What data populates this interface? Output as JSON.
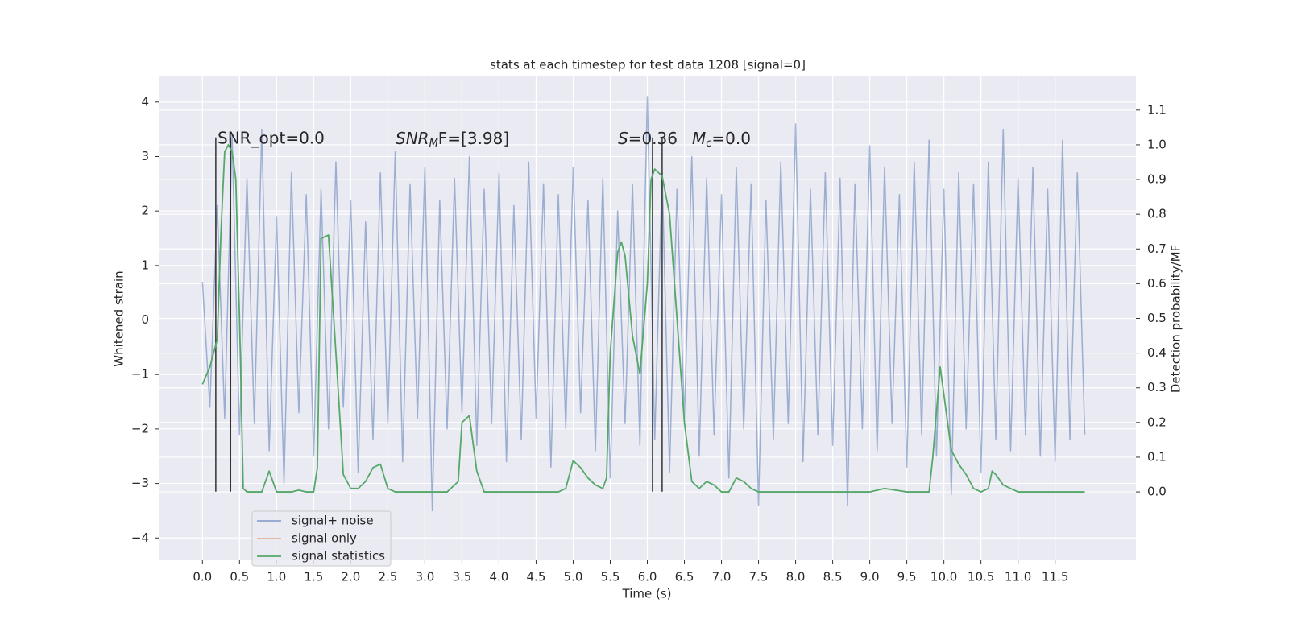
{
  "chart_data": {
    "type": "line",
    "title": "stats at each timestep for test data 1208 [signal=0]",
    "xlabel": "Time (s)",
    "ylabel": "Whitened strain",
    "y2label": "Detection probability/MF",
    "xlim": [
      -0.59,
      12.59
    ],
    "ylim": [
      -4.41,
      4.47
    ],
    "y2lim": [
      -0.197,
      1.197
    ],
    "grid": true,
    "legend": "lower left",
    "xticks": [
      {
        "value": 0,
        "label": "0.0"
      },
      0.5,
      {
        "value": 1,
        "label": "1.0"
      },
      1.5,
      {
        "value": 2,
        "label": "2.0"
      },
      2.5,
      {
        "value": 3,
        "label": "3.0"
      },
      3.5,
      {
        "value": 4,
        "label": "4.0"
      },
      4.5,
      {
        "value": 5,
        "label": "5.0"
      },
      5.5,
      {
        "value": 6,
        "label": "6.0"
      },
      6.5,
      {
        "value": 7,
        "label": "7.0"
      },
      7.5,
      {
        "value": 8,
        "label": "8.0"
      },
      8.5,
      {
        "value": 9,
        "label": "9.0"
      },
      9.5,
      {
        "value": 10,
        "label": "10.0"
      },
      10.5,
      {
        "value": 11,
        "label": "11.0"
      },
      11.5
    ],
    "yticks": [
      {
        "value": -4,
        "label": "−4"
      },
      {
        "value": -3,
        "label": "−3"
      },
      {
        "value": -2,
        "label": "−2"
      },
      {
        "value": -1,
        "label": "−1"
      },
      0,
      1,
      2,
      3,
      4
    ],
    "y2ticks": [
      {
        "value": 0,
        "label": "0.0"
      },
      0.1,
      0.2,
      0.3,
      0.4,
      0.5,
      0.6,
      0.7,
      0.8,
      0.9,
      {
        "value": 1,
        "label": "1.0"
      },
      1.1
    ],
    "series": [
      {
        "name": "signal+ noise",
        "color": "#4c72b0",
        "x": [
          0,
          0.1,
          0.2,
          0.3,
          0.4,
          0.5,
          0.6,
          0.7,
          0.8,
          0.9,
          1,
          1.1,
          1.2,
          1.3,
          1.4,
          1.5,
          1.6,
          1.7,
          1.8,
          1.9,
          2,
          2.1,
          2.2,
          2.3,
          2.4,
          2.5,
          2.6,
          2.7,
          2.8,
          2.9,
          3,
          3.1,
          3.2,
          3.3,
          3.4,
          3.5,
          3.6,
          3.7,
          3.8,
          3.9,
          4,
          4.1,
          4.2,
          4.3,
          4.4,
          4.5,
          4.6,
          4.7,
          4.8,
          4.9,
          5,
          5.1,
          5.2,
          5.3,
          5.4,
          5.5,
          5.6,
          5.7,
          5.8,
          5.9,
          6,
          6.1,
          6.2,
          6.3,
          6.4,
          6.5,
          6.6,
          6.7,
          6.8,
          6.9,
          7,
          7.1,
          7.2,
          7.3,
          7.4,
          7.5,
          7.6,
          7.7,
          7.8,
          7.9,
          8,
          8.1,
          8.2,
          8.3,
          8.4,
          8.5,
          8.6,
          8.7,
          8.8,
          8.9,
          9,
          9.1,
          9.2,
          9.3,
          9.4,
          9.5,
          9.6,
          9.7,
          9.8,
          9.9,
          10,
          10.1,
          10.2,
          10.3,
          10.4,
          10.5,
          10.6,
          10.7,
          10.8,
          10.9,
          11,
          11.1,
          11.2,
          11.3,
          11.4,
          11.5,
          11.6,
          11.7,
          11.8,
          11.9
        ],
        "values": [
          0.7,
          -1.6,
          2.1,
          -1.8,
          3.4,
          -2.1,
          2.6,
          -1.9,
          3.5,
          -2.4,
          1.9,
          -3.0,
          2.7,
          -1.7,
          2.3,
          -2.5,
          2.4,
          -2.0,
          2.9,
          -1.6,
          2.2,
          -2.8,
          1.8,
          -2.2,
          2.7,
          -1.9,
          3.1,
          -2.6,
          2.5,
          -1.8,
          2.8,
          -3.5,
          2.2,
          -2.0,
          2.6,
          -1.7,
          3.0,
          -2.3,
          2.4,
          -1.9,
          2.7,
          -2.6,
          2.1,
          -2.2,
          2.9,
          -1.8,
          2.5,
          -2.7,
          2.3,
          -2.0,
          2.8,
          -1.7,
          2.2,
          -2.4,
          2.6,
          -2.9,
          2.0,
          -1.9,
          2.5,
          -2.3,
          4.1,
          -2.2,
          2.7,
          -2.8,
          2.4,
          -1.8,
          3.0,
          -2.5,
          2.6,
          -2.1,
          2.3,
          -2.9,
          2.8,
          -2.0,
          2.5,
          -3.4,
          2.2,
          -2.2,
          2.9,
          -1.9,
          3.6,
          -2.6,
          2.4,
          -2.1,
          2.7,
          -2.3,
          2.6,
          -3.4,
          2.5,
          -2.0,
          3.2,
          -2.4,
          2.8,
          -1.9,
          2.3,
          -2.7,
          2.9,
          -2.1,
          3.3,
          -2.5,
          2.4,
          -3.2,
          2.7,
          -2.0,
          2.5,
          -2.8,
          2.9,
          -2.2,
          3.5,
          -2.4,
          2.6,
          -2.1,
          2.8,
          -2.5,
          2.4,
          -2.6,
          3.3,
          -2.2,
          2.7,
          -2.1
        ]
      },
      {
        "name": "signal only",
        "color": "#dd8452",
        "x": [],
        "values": []
      },
      {
        "name": "signal statistics",
        "color": "#55a868",
        "axis": "y2",
        "x": [
          0,
          0.1,
          0.2,
          0.25,
          0.3,
          0.35,
          0.4,
          0.45,
          0.5,
          0.55,
          0.6,
          0.7,
          0.8,
          0.9,
          1,
          1.1,
          1.2,
          1.3,
          1.4,
          1.5,
          1.55,
          1.6,
          1.7,
          1.8,
          1.9,
          2,
          2.1,
          2.2,
          2.3,
          2.4,
          2.5,
          2.6,
          3,
          3.3,
          3.45,
          3.5,
          3.6,
          3.7,
          3.8,
          4,
          4.5,
          4.8,
          4.9,
          5,
          5.1,
          5.2,
          5.3,
          5.4,
          5.45,
          5.5,
          5.6,
          5.65,
          5.7,
          5.8,
          5.9,
          6,
          6.05,
          6.1,
          6.2,
          6.3,
          6.4,
          6.5,
          6.6,
          6.7,
          6.8,
          6.9,
          7,
          7.1,
          7.2,
          7.3,
          7.4,
          7.5,
          8,
          8.5,
          9,
          9.2,
          9.5,
          9.8,
          9.85,
          9.95,
          10.05,
          10.1,
          10.2,
          10.3,
          10.4,
          10.5,
          10.6,
          10.65,
          10.7,
          10.8,
          10.9,
          11,
          11.5,
          11.9
        ],
        "values": [
          0.31,
          0.36,
          0.44,
          0.75,
          0.98,
          1.0,
          0.98,
          0.9,
          0.5,
          0.01,
          0.0,
          0.0,
          0.0,
          0.06,
          0.0,
          0.0,
          0.0,
          0.005,
          0.0,
          0.0,
          0.07,
          0.73,
          0.74,
          0.4,
          0.05,
          0.01,
          0.01,
          0.03,
          0.07,
          0.08,
          0.01,
          0.0,
          0.0,
          0.0,
          0.03,
          0.2,
          0.22,
          0.06,
          0.0,
          0.0,
          0.0,
          0.0,
          0.01,
          0.09,
          0.07,
          0.04,
          0.02,
          0.01,
          0.04,
          0.4,
          0.69,
          0.72,
          0.68,
          0.45,
          0.34,
          0.6,
          0.9,
          0.93,
          0.91,
          0.8,
          0.5,
          0.2,
          0.03,
          0.01,
          0.03,
          0.02,
          0.0,
          0.0,
          0.04,
          0.03,
          0.01,
          0.0,
          0.0,
          0.0,
          0.0,
          0.01,
          0.0,
          0.0,
          0.1,
          0.36,
          0.2,
          0.12,
          0.08,
          0.05,
          0.01,
          0.0,
          0.01,
          0.06,
          0.05,
          0.02,
          0.01,
          0.0,
          0.0,
          0.0
        ]
      }
    ],
    "vlines": {
      "x": [
        0.18,
        0.38,
        6.07,
        6.2
      ],
      "ymin": -3.15,
      "ymax": 3.35,
      "color": "#333333"
    },
    "annotations": [
      {
        "text": "SNR_opt=0.0"
      },
      {
        "base": "SNR",
        "sub": "M",
        "rest": "F=[3.98]"
      },
      {
        "base": "S",
        "rest": "=0.36"
      },
      {
        "base": "M",
        "sub": "c",
        "rest": "=0.0"
      }
    ]
  }
}
